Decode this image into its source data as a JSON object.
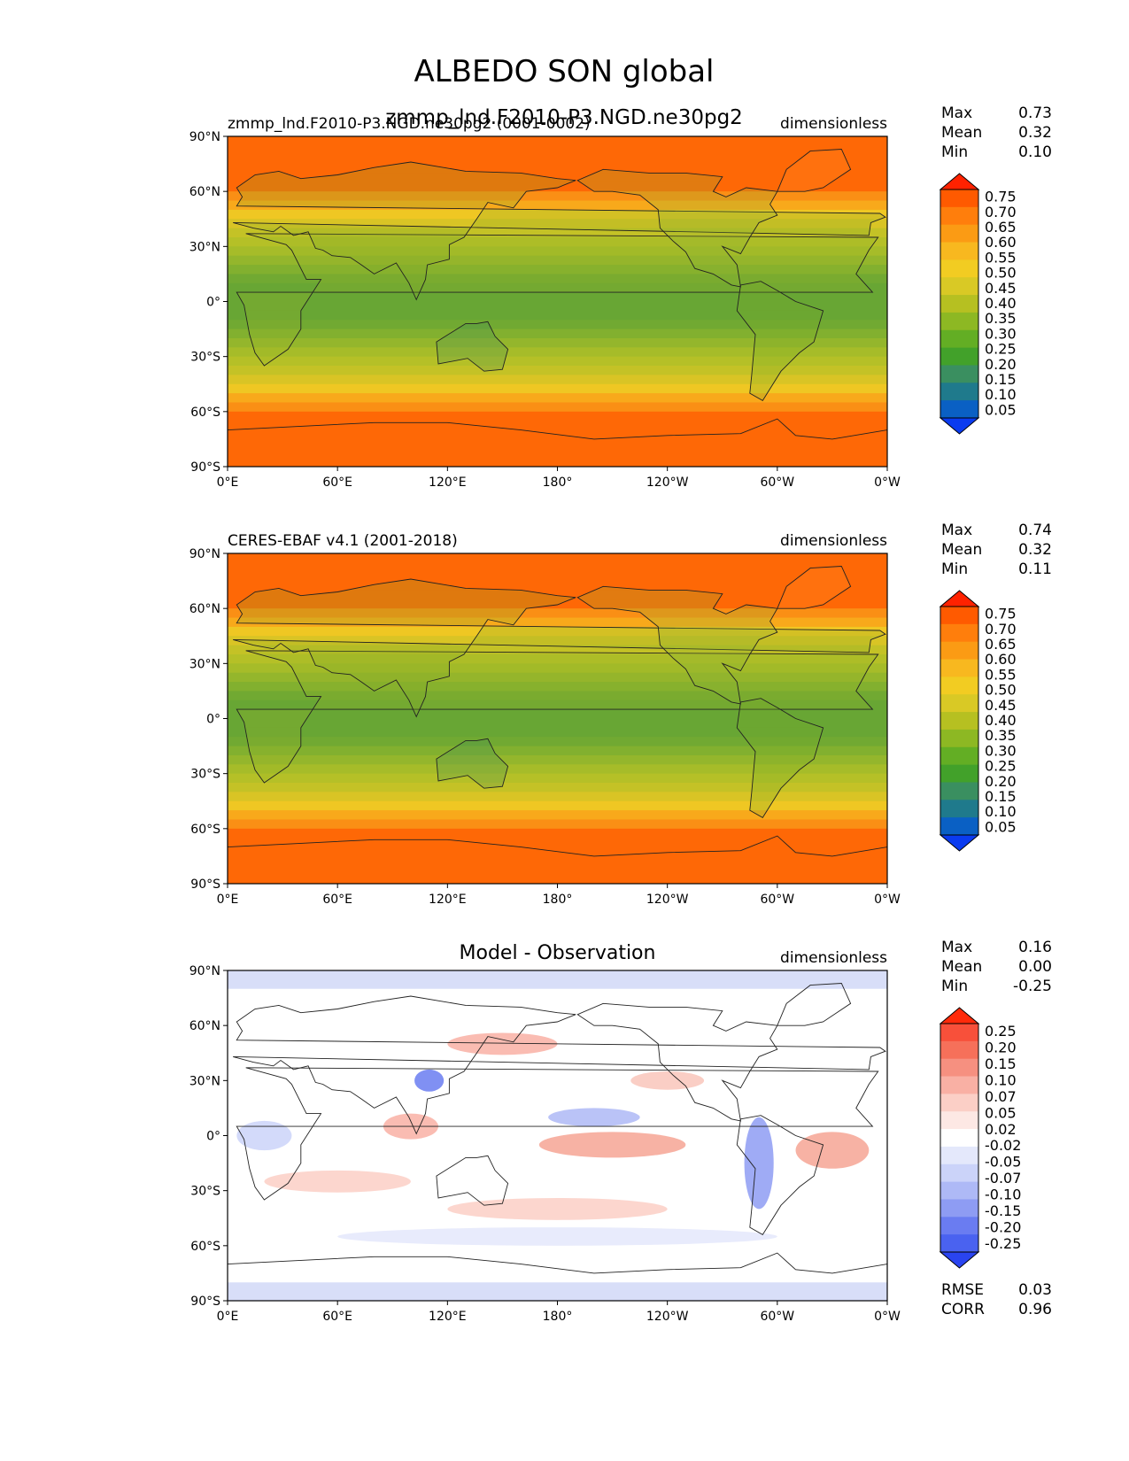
{
  "figure": {
    "title": "ALBEDO SON global",
    "overlay_title": "zmmp_lnd.F2010-P3.NGD.ne30pg2"
  },
  "panels": [
    {
      "left_title": "zmmp_lnd.F2010-P3.NGD.ne30pg2 (0001-0002)",
      "center_title": "",
      "right_title": "dimensionless",
      "stats": [
        {
          "label": "Max",
          "value": "0.73"
        },
        {
          "label": "Mean",
          "value": "0.32"
        },
        {
          "label": "Min",
          "value": "0.10"
        }
      ],
      "colorbar_labels": [
        "0.75",
        "0.70",
        "0.65",
        "0.60",
        "0.55",
        "0.50",
        "0.45",
        "0.40",
        "0.35",
        "0.30",
        "0.25",
        "0.20",
        "0.15",
        "0.10",
        "0.05"
      ],
      "colorbar_colors": [
        "#ff2200",
        "#ff5a00",
        "#ff7e0c",
        "#fb9b14",
        "#f8b81f",
        "#f2cc22",
        "#d9c925",
        "#b6c021",
        "#8db823",
        "#63ae24",
        "#42a12a",
        "#3a8f60",
        "#1f7a8c",
        "#0a60c4",
        "#0a3bf0"
      ],
      "colormap": "albedo",
      "stats_extra": []
    },
    {
      "left_title": "CERES-EBAF v4.1 (2001-2018)",
      "center_title": "",
      "right_title": "dimensionless",
      "stats": [
        {
          "label": "Max",
          "value": "0.74"
        },
        {
          "label": "Mean",
          "value": "0.32"
        },
        {
          "label": "Min",
          "value": "0.11"
        }
      ],
      "colorbar_labels": [
        "0.75",
        "0.70",
        "0.65",
        "0.60",
        "0.55",
        "0.50",
        "0.45",
        "0.40",
        "0.35",
        "0.30",
        "0.25",
        "0.20",
        "0.15",
        "0.10",
        "0.05"
      ],
      "colorbar_colors": [
        "#ff2200",
        "#ff5a00",
        "#ff7e0c",
        "#fb9b14",
        "#f8b81f",
        "#f2cc22",
        "#d9c925",
        "#b6c021",
        "#8db823",
        "#63ae24",
        "#42a12a",
        "#3a8f60",
        "#1f7a8c",
        "#0a60c4",
        "#0a3bf0"
      ],
      "colormap": "albedo",
      "stats_extra": []
    },
    {
      "left_title": "",
      "center_title": "Model - Observation",
      "right_title": "dimensionless",
      "stats": [
        {
          "label": "Max",
          "value": "0.16"
        },
        {
          "label": "Mean",
          "value": "0.00"
        },
        {
          "label": "Min",
          "value": "-0.25"
        }
      ],
      "colorbar_labels": [
        "0.25",
        "0.20",
        "0.15",
        "0.10",
        "0.07",
        "0.05",
        "0.02",
        "-0.02",
        "-0.05",
        "-0.07",
        "-0.10",
        "-0.15",
        "-0.20",
        "-0.25"
      ],
      "colorbar_colors": [
        "#ff2a0a",
        "#f8503a",
        "#f6705a",
        "#f69080",
        "#f9b0a4",
        "#fbcfc6",
        "#fde8e4",
        "#ffffff",
        "#e4e8fb",
        "#cbd3f9",
        "#aeb9f6",
        "#8e9cf3",
        "#6a7cf1",
        "#4a62f0",
        "#2a44f0"
      ],
      "colormap": "diff",
      "stats_extra": [
        {
          "label": "RMSE",
          "value": "0.03"
        },
        {
          "label": "CORR",
          "value": "0.96"
        }
      ]
    }
  ],
  "axes": {
    "y_ticks": [
      "90°N",
      "60°N",
      "30°N",
      "0°",
      "30°S",
      "60°S",
      "90°S"
    ],
    "x_ticks": [
      "0°E",
      "60°E",
      "120°E",
      "180°",
      "120°W",
      "60°W",
      "0°W"
    ]
  },
  "chart_data": {
    "type": "heatmap",
    "title": "ALBEDO SON global",
    "variable": "ALBEDO",
    "season": "SON",
    "units": "dimensionless",
    "x_ticks": [
      "0°E",
      "60°E",
      "120°E",
      "180°",
      "120°W",
      "60°W",
      "0°W"
    ],
    "y_ticks": [
      "90°N",
      "60°N",
      "30°N",
      "0°",
      "30°S",
      "60°S",
      "90°S"
    ],
    "xlim": [
      0,
      360
    ],
    "ylim": [
      -90,
      90
    ],
    "panels": [
      {
        "name": "zmmp_lnd.F2010-P3.NGD.ne30pg2 (0001-0002)",
        "max": 0.73,
        "mean": 0.32,
        "min": 0.1,
        "levels": [
          0.05,
          0.1,
          0.15,
          0.2,
          0.25,
          0.3,
          0.35,
          0.4,
          0.45,
          0.5,
          0.55,
          0.6,
          0.65,
          0.7,
          0.75
        ]
      },
      {
        "name": "CERES-EBAF v4.1 (2001-2018)",
        "max": 0.74,
        "mean": 0.32,
        "min": 0.11,
        "levels": [
          0.05,
          0.1,
          0.15,
          0.2,
          0.25,
          0.3,
          0.35,
          0.4,
          0.45,
          0.5,
          0.55,
          0.6,
          0.65,
          0.7,
          0.75
        ]
      },
      {
        "name": "Model - Observation",
        "max": 0.16,
        "mean": 0.0,
        "min": -0.25,
        "rmse": 0.03,
        "corr": 0.96,
        "levels": [
          -0.25,
          -0.2,
          -0.15,
          -0.1,
          -0.07,
          -0.05,
          -0.02,
          0.02,
          0.05,
          0.07,
          0.1,
          0.15,
          0.2,
          0.25
        ]
      }
    ]
  }
}
